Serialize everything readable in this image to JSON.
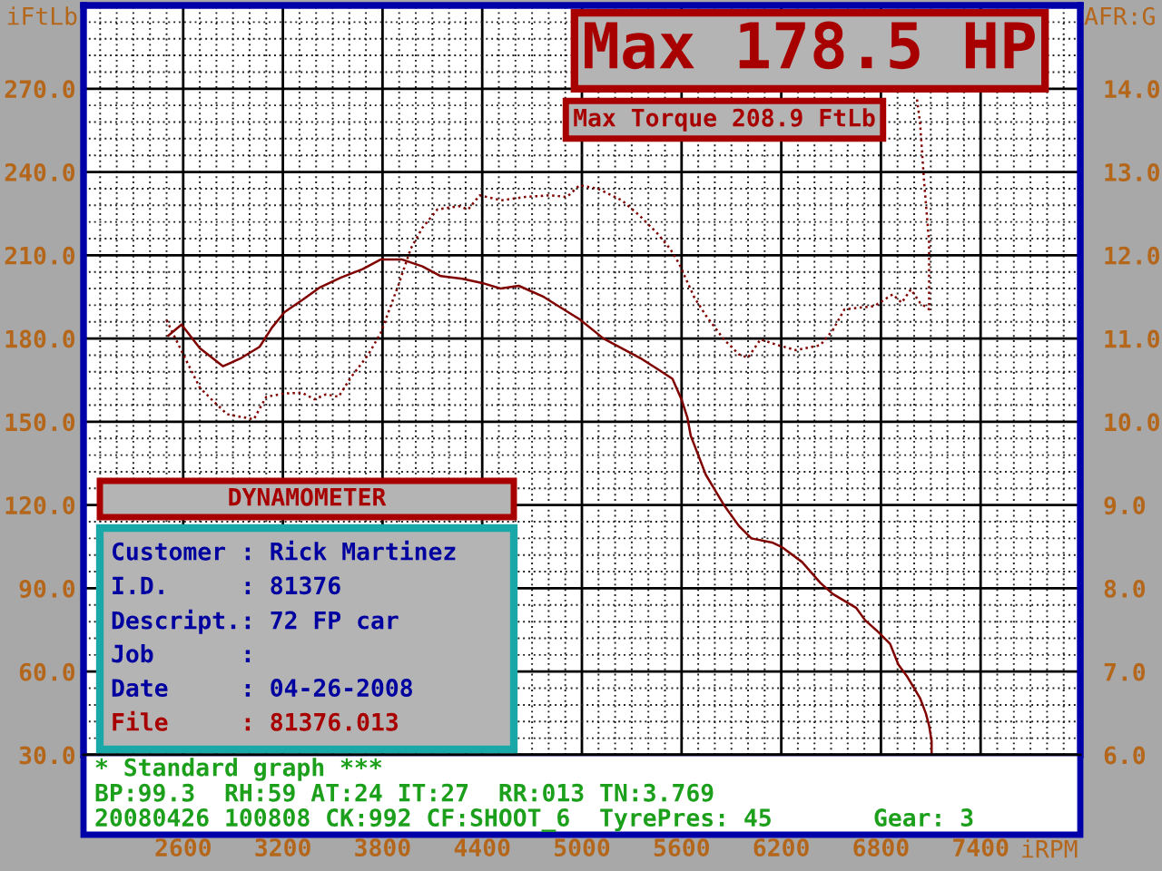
{
  "chart_data": {
    "type": "line",
    "title": "Max 178.5 HP",
    "subtitle": "Max Torque 208.9 FtLb",
    "xlabel": "iRPM",
    "ylabel": "iFtLb",
    "y2label": "AFR:G",
    "xlim": [
      2000,
      8000
    ],
    "xticks": [
      2600,
      3200,
      3800,
      4400,
      5000,
      5600,
      6200,
      6800,
      7400
    ],
    "ylim": [
      30,
      300
    ],
    "yticks": [
      {
        "value": 30,
        "label": "30.0"
      },
      {
        "value": 60,
        "label": "60.0"
      },
      {
        "value": 90,
        "label": "90.0"
      },
      {
        "value": 120,
        "label": "120.0"
      },
      {
        "value": 150,
        "label": "150.0"
      },
      {
        "value": 180,
        "label": "180.0"
      },
      {
        "value": 210,
        "label": "210.0"
      },
      {
        "value": 240,
        "label": "240.0"
      },
      {
        "value": 270,
        "label": "270.0"
      }
    ],
    "y2lim": [
      6,
      15
    ],
    "y2ticks": [
      {
        "value": 6,
        "label": "6.0"
      },
      {
        "value": 7,
        "label": "7.0"
      },
      {
        "value": 8,
        "label": "8.0"
      },
      {
        "value": 9,
        "label": "9.0"
      },
      {
        "value": 10,
        "label": "10.0"
      },
      {
        "value": 11,
        "label": "11.0"
      },
      {
        "value": 12,
        "label": "12.0"
      },
      {
        "value": 13,
        "label": "13.0"
      },
      {
        "value": 14,
        "label": "14.0"
      }
    ],
    "grid": true,
    "series": [
      {
        "color": "#800000",
        "x": [
          2510,
          2590,
          2700,
          2840,
          2950,
          3060,
          3135,
          3210,
          3320,
          3425,
          3550,
          3680,
          3790,
          3915,
          4040,
          4150,
          4280,
          4400,
          4510,
          4620,
          4770,
          4890,
          4985,
          5130,
          5240,
          5350,
          5455,
          5545,
          5600,
          5635,
          5655,
          5710,
          5745,
          5800,
          5855,
          5945,
          6020,
          6145,
          6200,
          6325,
          6435,
          6510,
          6650,
          6705,
          6780,
          6855,
          6905,
          6960,
          7035,
          7070,
          7090,
          7105,
          7105
        ],
        "values": [
          181,
          185,
          176.5,
          170,
          173,
          177,
          184,
          189.5,
          194,
          198.5,
          202,
          205,
          208.5,
          208.5,
          206,
          202.5,
          201.5,
          200,
          198,
          199,
          195,
          190.5,
          187,
          180,
          176.5,
          173,
          169,
          165.5,
          158,
          151.5,
          145,
          136.5,
          131,
          125.5,
          120,
          112.5,
          108,
          106.5,
          105,
          99.5,
          92,
          88,
          83,
          78.5,
          74.5,
          70,
          62.5,
          58,
          50.5,
          45,
          40.5,
          35,
          30
        ]
      },
      {
        "color": "#800000",
        "axis": "y2",
        "line_style": "dotted",
        "x": [
          2500,
          2590,
          2700,
          2770,
          2865,
          3025,
          3100,
          3210,
          3315,
          3390,
          3460,
          3535,
          3605,
          3715,
          3790,
          3895,
          3970,
          4040,
          4130,
          4260,
          4315,
          4385,
          4515,
          4660,
          4805,
          4910,
          4985,
          5095,
          5240,
          5345,
          5455,
          5530,
          5585,
          5675,
          5745,
          5855,
          5945,
          6000,
          6075,
          6180,
          6290,
          6435,
          6510,
          6580,
          6760,
          6870,
          6925,
          6980,
          7035,
          7090,
          7090,
          7060,
          7035,
          7015
        ],
        "values": [
          11.22,
          10.85,
          10.41,
          10.27,
          10.09,
          10.03,
          10.3,
          10.34,
          10.35,
          10.27,
          10.33,
          10.3,
          10.52,
          10.81,
          11.07,
          11.64,
          12.08,
          12.33,
          12.55,
          12.59,
          12.55,
          12.72,
          12.66,
          12.7,
          12.72,
          12.7,
          12.84,
          12.8,
          12.66,
          12.48,
          12.26,
          12.08,
          11.9,
          11.5,
          11.28,
          10.99,
          10.81,
          10.77,
          10.99,
          10.92,
          10.86,
          10.92,
          11.1,
          11.35,
          11.39,
          11.53,
          11.43,
          11.59,
          11.43,
          11.35,
          12.15,
          12.88,
          13.6,
          13.9
        ]
      }
    ],
    "annotations": [
      "DYNAMOMETER",
      "Customer : Rick Martinez",
      "I.D.     : 81376",
      "Descript.: 72 FP car",
      "Job      :",
      "Date     : 04-26-2008",
      "File     : 81376.013",
      "* Standard graph ***",
      "BP:99.3  RH:59 AT:24 IT:27  RR:013 TN:3.769",
      "20080426 100808 CK:992 CF:SHOOT_6  TyrePres: 45       Gear: 3"
    ]
  }
}
